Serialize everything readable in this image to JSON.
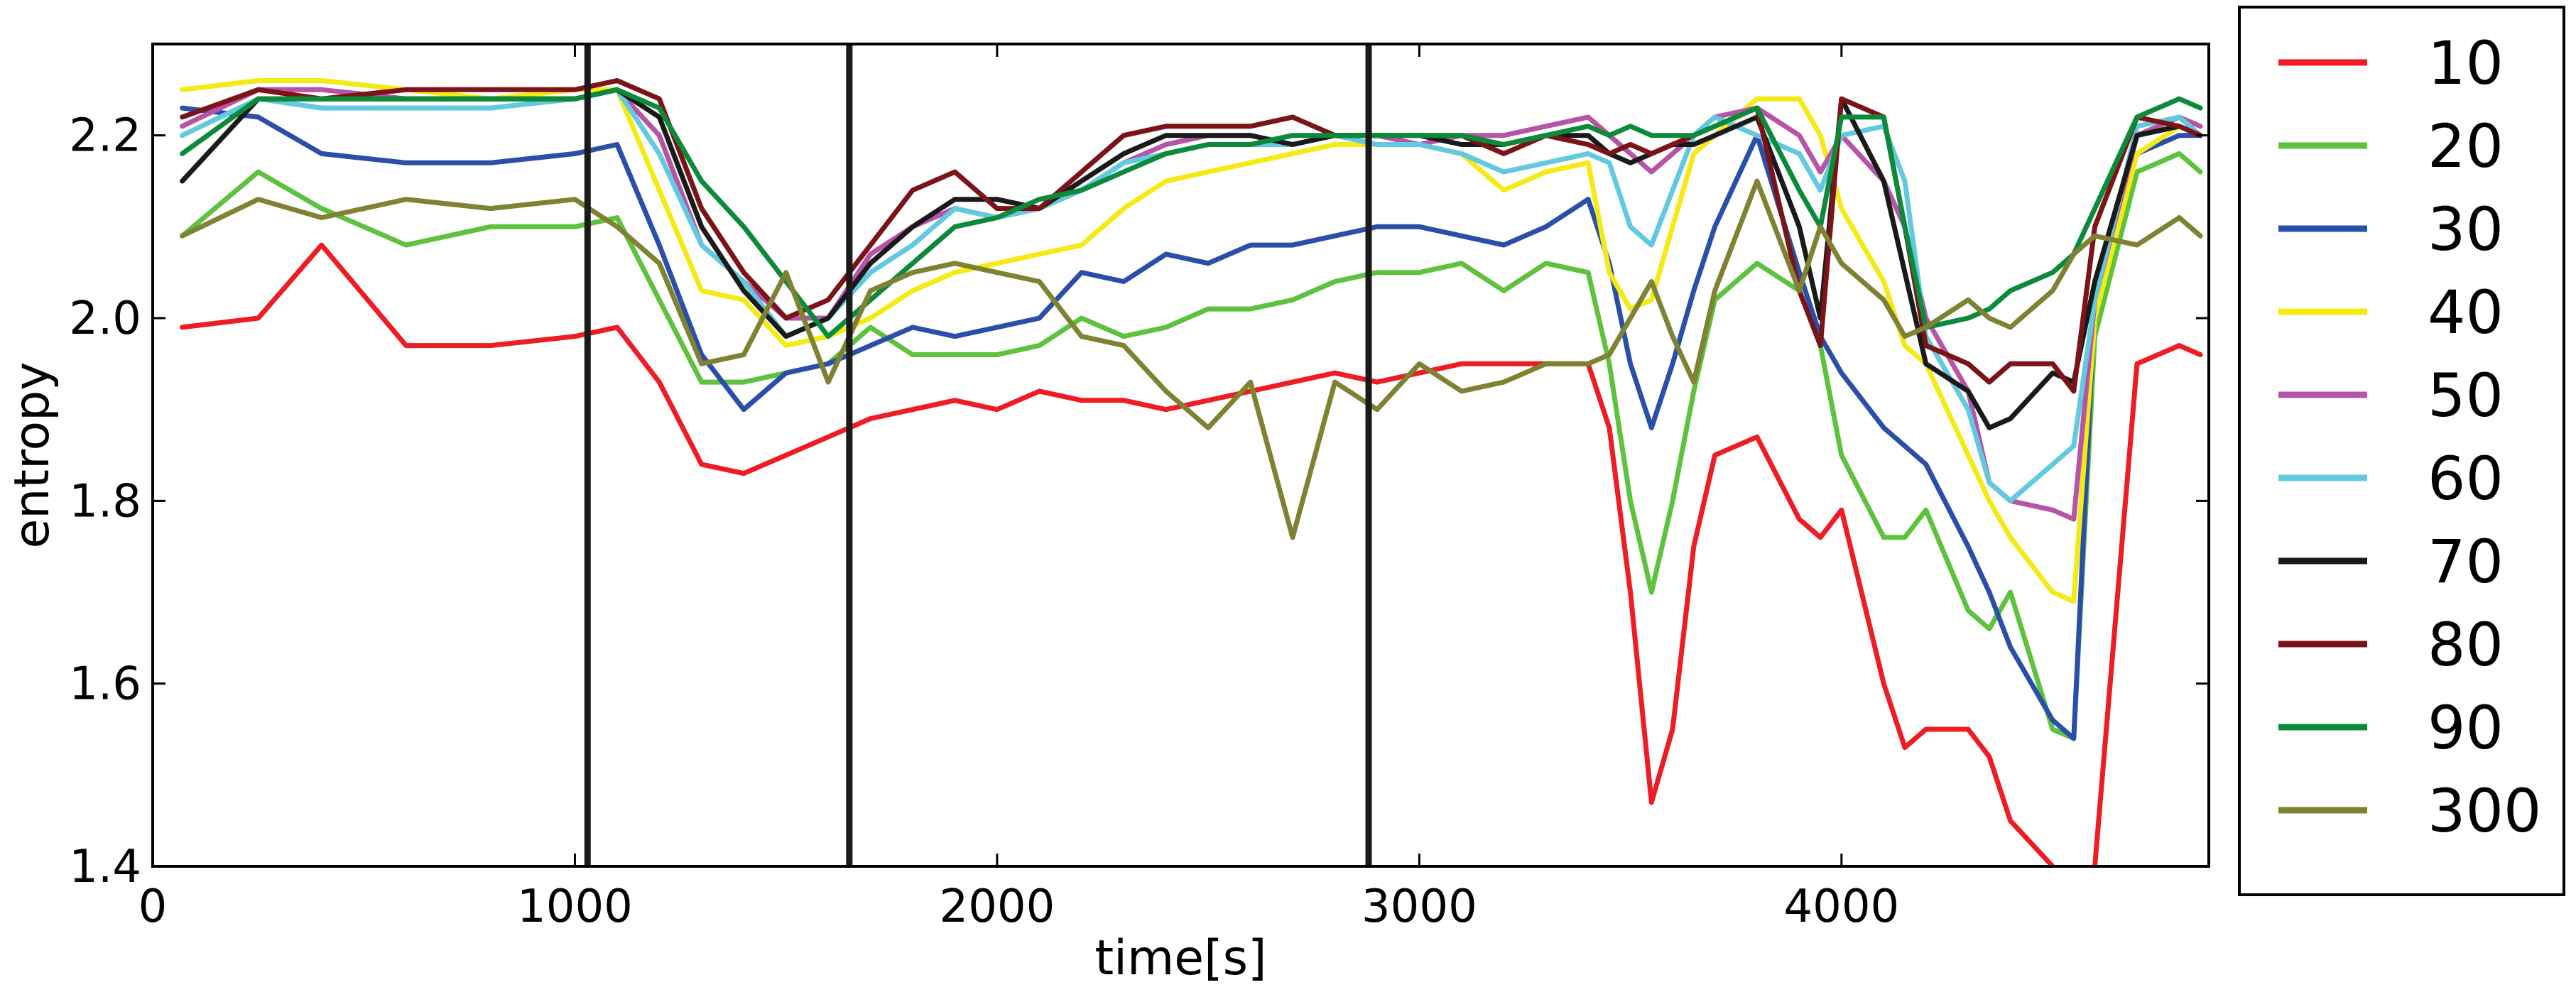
{
  "chart_data": {
    "type": "line",
    "title": "",
    "xlabel": "time[s]",
    "ylabel": "entropy",
    "xlim": [
      0,
      4870
    ],
    "ylim": [
      1.4,
      2.3
    ],
    "xticks": [
      0,
      1000,
      2000,
      3000,
      4000
    ],
    "xtick_labels": [
      "0",
      "1000",
      "2000",
      "3000",
      "4000"
    ],
    "yticks": [
      1.4,
      1.6,
      1.8,
      2.0,
      2.2
    ],
    "ytick_labels": [
      "1.4",
      "1.6",
      "1.8",
      "2.0",
      "2.2"
    ],
    "grid": false,
    "legend_position": "outside-right",
    "vlines": [
      1030,
      1650,
      2880
    ],
    "x": [
      70,
      250,
      400,
      600,
      800,
      1000,
      1100,
      1200,
      1300,
      1400,
      1500,
      1600,
      1700,
      1800,
      1900,
      2000,
      2100,
      2200,
      2300,
      2400,
      2500,
      2600,
      2700,
      2800,
      2900,
      3000,
      3100,
      3200,
      3300,
      3400,
      3450,
      3500,
      3550,
      3600,
      3650,
      3700,
      3800,
      3900,
      3950,
      4000,
      4100,
      4150,
      4200,
      4300,
      4350,
      4400,
      4500,
      4550,
      4600,
      4700,
      4800,
      4850
    ],
    "series": [
      {
        "name": "10",
        "color": "#ee1c24",
        "values": [
          1.99,
          2.0,
          2.08,
          1.97,
          1.97,
          1.98,
          1.99,
          1.93,
          1.84,
          1.83,
          1.85,
          1.87,
          1.89,
          1.9,
          1.91,
          1.9,
          1.92,
          1.91,
          1.91,
          1.9,
          1.91,
          1.92,
          1.93,
          1.94,
          1.93,
          1.94,
          1.95,
          1.95,
          1.95,
          1.95,
          1.88,
          1.7,
          1.47,
          1.55,
          1.75,
          1.85,
          1.87,
          1.78,
          1.76,
          1.79,
          1.6,
          1.53,
          1.55,
          1.55,
          1.52,
          1.45,
          1.4,
          1.38,
          1.4,
          1.95,
          1.97,
          1.96
        ]
      },
      {
        "name": "20",
        "color": "#5ec23f",
        "values": [
          2.09,
          2.16,
          2.12,
          2.08,
          2.1,
          2.1,
          2.11,
          2.02,
          1.93,
          1.93,
          1.94,
          1.95,
          1.99,
          1.96,
          1.96,
          1.96,
          1.97,
          2.0,
          1.98,
          1.99,
          2.01,
          2.01,
          2.02,
          2.04,
          2.05,
          2.05,
          2.06,
          2.03,
          2.06,
          2.05,
          1.95,
          1.8,
          1.7,
          1.8,
          1.92,
          2.02,
          2.06,
          2.03,
          1.97,
          1.85,
          1.76,
          1.76,
          1.79,
          1.68,
          1.66,
          1.7,
          1.55,
          1.54,
          1.98,
          2.16,
          2.18,
          2.16
        ]
      },
      {
        "name": "30",
        "color": "#2a4fa8",
        "values": [
          2.23,
          2.22,
          2.18,
          2.17,
          2.17,
          2.18,
          2.19,
          2.08,
          1.96,
          1.9,
          1.94,
          1.95,
          1.97,
          1.99,
          1.98,
          1.99,
          2.0,
          2.05,
          2.04,
          2.07,
          2.06,
          2.08,
          2.08,
          2.09,
          2.1,
          2.1,
          2.09,
          2.08,
          2.1,
          2.13,
          2.06,
          1.95,
          1.88,
          1.95,
          2.03,
          2.1,
          2.2,
          2.05,
          1.98,
          1.94,
          1.88,
          1.86,
          1.84,
          1.75,
          1.7,
          1.64,
          1.56,
          1.54,
          2.02,
          2.18,
          2.2,
          2.2
        ]
      },
      {
        "name": "40",
        "color": "#f5ea14",
        "values": [
          2.25,
          2.26,
          2.26,
          2.25,
          2.24,
          2.25,
          2.25,
          2.14,
          2.03,
          2.02,
          1.97,
          1.98,
          2.0,
          2.03,
          2.05,
          2.06,
          2.07,
          2.08,
          2.12,
          2.15,
          2.16,
          2.17,
          2.18,
          2.19,
          2.19,
          2.19,
          2.18,
          2.14,
          2.16,
          2.17,
          2.05,
          2.01,
          2.02,
          2.1,
          2.18,
          2.2,
          2.24,
          2.24,
          2.2,
          2.12,
          2.04,
          1.97,
          1.95,
          1.85,
          1.8,
          1.76,
          1.7,
          1.69,
          2.0,
          2.18,
          2.21,
          2.2
        ]
      },
      {
        "name": "50",
        "color": "#b654a8",
        "values": [
          2.21,
          2.25,
          2.25,
          2.24,
          2.24,
          2.24,
          2.25,
          2.2,
          2.08,
          2.04,
          2.0,
          2.0,
          2.07,
          2.1,
          2.12,
          2.11,
          2.12,
          2.14,
          2.17,
          2.19,
          2.2,
          2.2,
          2.19,
          2.2,
          2.2,
          2.19,
          2.2,
          2.2,
          2.21,
          2.22,
          2.2,
          2.18,
          2.16,
          2.18,
          2.2,
          2.22,
          2.23,
          2.2,
          2.16,
          2.2,
          2.15,
          2.1,
          2.0,
          1.92,
          1.82,
          1.8,
          1.79,
          1.78,
          2.02,
          2.2,
          2.22,
          2.21
        ]
      },
      {
        "name": "60",
        "color": "#62c9e0",
        "values": [
          2.2,
          2.24,
          2.23,
          2.23,
          2.23,
          2.24,
          2.25,
          2.18,
          2.08,
          2.04,
          1.98,
          2.0,
          2.05,
          2.08,
          2.12,
          2.11,
          2.12,
          2.14,
          2.17,
          2.18,
          2.19,
          2.19,
          2.19,
          2.2,
          2.19,
          2.19,
          2.18,
          2.16,
          2.17,
          2.18,
          2.17,
          2.1,
          2.08,
          2.14,
          2.2,
          2.22,
          2.2,
          2.18,
          2.14,
          2.2,
          2.21,
          2.15,
          1.98,
          1.9,
          1.82,
          1.8,
          1.84,
          1.86,
          2.02,
          2.21,
          2.22,
          2.2
        ]
      },
      {
        "name": "70",
        "color": "#1a1a1a",
        "values": [
          2.15,
          2.24,
          2.24,
          2.24,
          2.24,
          2.24,
          2.25,
          2.22,
          2.1,
          2.03,
          1.98,
          2.0,
          2.06,
          2.1,
          2.13,
          2.13,
          2.12,
          2.15,
          2.18,
          2.2,
          2.2,
          2.2,
          2.19,
          2.2,
          2.2,
          2.2,
          2.19,
          2.19,
          2.2,
          2.2,
          2.18,
          2.17,
          2.18,
          2.19,
          2.19,
          2.2,
          2.22,
          2.1,
          2.0,
          2.24,
          2.15,
          2.05,
          1.95,
          1.92,
          1.88,
          1.89,
          1.94,
          1.93,
          2.04,
          2.2,
          2.21,
          2.2
        ]
      },
      {
        "name": "80",
        "color": "#7b1418",
        "values": [
          2.22,
          2.25,
          2.24,
          2.25,
          2.25,
          2.25,
          2.26,
          2.24,
          2.12,
          2.05,
          2.0,
          2.02,
          2.08,
          2.14,
          2.16,
          2.12,
          2.12,
          2.16,
          2.2,
          2.21,
          2.21,
          2.21,
          2.22,
          2.2,
          2.2,
          2.2,
          2.2,
          2.18,
          2.2,
          2.19,
          2.18,
          2.19,
          2.18,
          2.19,
          2.2,
          2.21,
          2.23,
          2.03,
          1.97,
          2.24,
          2.22,
          2.1,
          1.97,
          1.95,
          1.93,
          1.95,
          1.95,
          1.92,
          2.1,
          2.22,
          2.21,
          2.2
        ]
      },
      {
        "name": "90",
        "color": "#0c8a3a",
        "values": [
          2.18,
          2.24,
          2.24,
          2.24,
          2.24,
          2.24,
          2.25,
          2.23,
          2.15,
          2.1,
          2.04,
          1.98,
          2.02,
          2.06,
          2.1,
          2.11,
          2.13,
          2.14,
          2.16,
          2.18,
          2.19,
          2.19,
          2.2,
          2.2,
          2.2,
          2.2,
          2.2,
          2.19,
          2.2,
          2.21,
          2.2,
          2.21,
          2.2,
          2.2,
          2.2,
          2.21,
          2.23,
          2.14,
          2.1,
          2.22,
          2.22,
          2.1,
          1.99,
          2.0,
          2.01,
          2.03,
          2.05,
          2.07,
          2.12,
          2.22,
          2.24,
          2.23
        ]
      },
      {
        "name": "300",
        "color": "#7e8232",
        "values": [
          2.09,
          2.13,
          2.11,
          2.13,
          2.12,
          2.13,
          2.1,
          2.06,
          1.95,
          1.96,
          2.05,
          1.93,
          2.03,
          2.05,
          2.06,
          2.05,
          2.04,
          1.98,
          1.97,
          1.92,
          1.88,
          1.93,
          1.76,
          1.93,
          1.9,
          1.95,
          1.92,
          1.93,
          1.95,
          1.95,
          1.96,
          2.0,
          2.04,
          1.98,
          1.93,
          2.03,
          2.15,
          2.03,
          2.1,
          2.06,
          2.02,
          1.98,
          1.99,
          2.02,
          2.0,
          1.99,
          2.03,
          2.07,
          2.09,
          2.08,
          2.11,
          2.09
        ]
      }
    ]
  }
}
